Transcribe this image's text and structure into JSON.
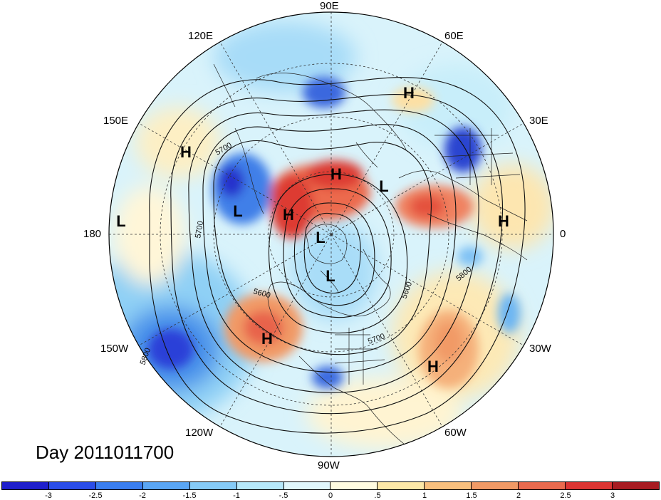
{
  "title": "Day 2011011700",
  "longitude_labels": {
    "lon_90e": "90E",
    "lon_60e": "60E",
    "lon_30e": "30E",
    "lon_0": "0",
    "lon_30w": "30W",
    "lon_60w": "60W",
    "lon_90w": "90W",
    "lon_120w": "120W",
    "lon_150w": "150W",
    "lon_180": "180",
    "lon_150e": "150E",
    "lon_120e": "120E"
  },
  "pressure_centers": [
    {
      "id": "h1",
      "label": "H"
    },
    {
      "id": "h2",
      "label": "H"
    },
    {
      "id": "h3",
      "label": "H"
    },
    {
      "id": "h4",
      "label": "H"
    },
    {
      "id": "h5",
      "label": "H"
    },
    {
      "id": "h6",
      "label": "H"
    },
    {
      "id": "h7",
      "label": "H"
    },
    {
      "id": "l1",
      "label": "L"
    },
    {
      "id": "l2",
      "label": "L"
    },
    {
      "id": "l3",
      "label": "L"
    },
    {
      "id": "l4",
      "label": "L"
    },
    {
      "id": "l5",
      "label": "L"
    }
  ],
  "contour_labels": [
    "5700",
    "5700",
    "5600",
    "5600",
    "5700",
    "5800",
    "5800"
  ],
  "colorbar": {
    "colors": [
      "#1f1fcc",
      "#2b4de8",
      "#3a7ef0",
      "#5aa6f5",
      "#86cbf7",
      "#b6e8fa",
      "#e0f6fb",
      "#fffbe0",
      "#fde8a8",
      "#f9c07e",
      "#f19a66",
      "#ea6a4e",
      "#dc3533",
      "#a81c22"
    ],
    "tick_labels": [
      "-3",
      "-2.5",
      "-2",
      "-1.5",
      "-1",
      "-.5",
      "0",
      ".5",
      "1",
      "1.5",
      "2",
      "2.5",
      "3"
    ]
  }
}
